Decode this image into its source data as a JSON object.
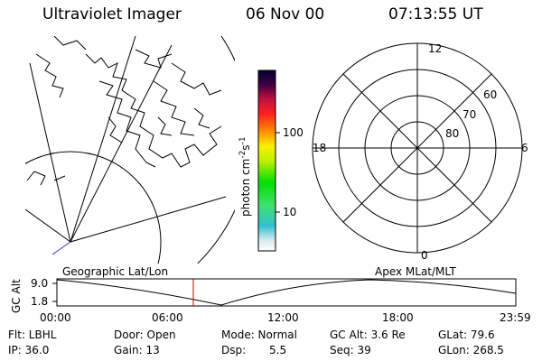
{
  "header": {
    "instrument": "Ultraviolet Imager",
    "date": "06 Nov 00",
    "time": "07:13:55 UT"
  },
  "colorbar": {
    "unit": "photon cm",
    "unit_exp1": "-2",
    "unit_s": "s",
    "unit_exp2": "-1",
    "ticks": [
      "100",
      "10"
    ]
  },
  "polar": {
    "mlt_labels": {
      "top": "12",
      "left": "18",
      "right": "6",
      "bottom": "0"
    },
    "lat_labels": [
      "60",
      "70",
      "80"
    ]
  },
  "panels": {
    "left_label": "Geographic Lat/Lon",
    "right_label": "Apex MLat/MLT"
  },
  "altitude_plot": {
    "ylabel": "GC Alt",
    "y_ticks": [
      "9.0",
      "1.8"
    ],
    "x_ticks": [
      "00:00",
      "06:00",
      "12:00",
      "18:00",
      "23:59"
    ],
    "current_time_marker": "07:13"
  },
  "info": {
    "flt": "Flt: LBHL",
    "ip": "IP: 36.0",
    "door": "Door: Open",
    "gain": "Gain: 13",
    "mode": "Mode: Normal",
    "dsp_label": "Dsp:",
    "dsp_value": "5.5",
    "gc_alt": "GC Alt: 3.6 Re",
    "seq": "Seq: 39",
    "glat": "GLat: 79.6",
    "glon": "GLon: 268.5"
  }
}
